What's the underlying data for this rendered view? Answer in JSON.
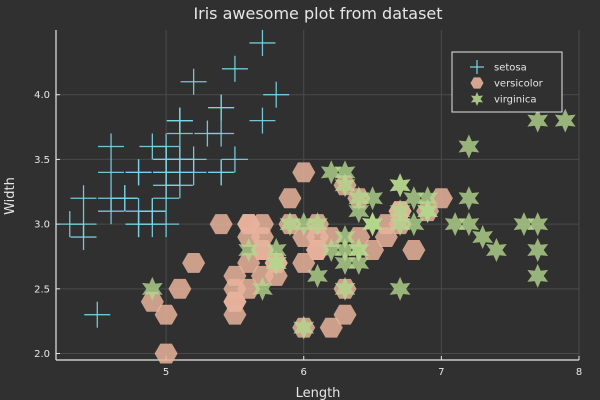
{
  "chart_data": {
    "type": "scatter",
    "title": "Iris awesome plot from dataset",
    "xlabel": "Length",
    "ylabel": "Width",
    "xlim": [
      4.2,
      8.0
    ],
    "ylim": [
      1.95,
      4.5
    ],
    "xticks": [
      "5",
      "6",
      "7",
      "8"
    ],
    "yticks": [
      "2.0",
      "2.5",
      "3.0",
      "3.5",
      "4.0"
    ],
    "grid": true,
    "legend_position": "top-right",
    "background": "#303030",
    "series": [
      {
        "name": "setosa",
        "marker": "cross",
        "color": "#7ad7e8",
        "points": [
          [
            5.1,
            3.5
          ],
          [
            4.9,
            3.0
          ],
          [
            4.7,
            3.2
          ],
          [
            4.6,
            3.1
          ],
          [
            5.0,
            3.6
          ],
          [
            5.4,
            3.9
          ],
          [
            4.6,
            3.4
          ],
          [
            5.0,
            3.4
          ],
          [
            4.4,
            2.9
          ],
          [
            4.9,
            3.1
          ],
          [
            5.4,
            3.7
          ],
          [
            4.8,
            3.4
          ],
          [
            4.8,
            3.0
          ],
          [
            4.3,
            3.0
          ],
          [
            5.8,
            4.0
          ],
          [
            5.7,
            4.4
          ],
          [
            5.4,
            3.9
          ],
          [
            5.1,
            3.5
          ],
          [
            5.7,
            3.8
          ],
          [
            5.1,
            3.8
          ],
          [
            5.4,
            3.4
          ],
          [
            5.1,
            3.7
          ],
          [
            4.6,
            3.6
          ],
          [
            5.1,
            3.3
          ],
          [
            4.8,
            3.4
          ],
          [
            5.0,
            3.0
          ],
          [
            5.0,
            3.4
          ],
          [
            5.2,
            3.5
          ],
          [
            5.2,
            3.4
          ],
          [
            4.7,
            3.2
          ],
          [
            4.8,
            3.1
          ],
          [
            5.4,
            3.4
          ],
          [
            5.2,
            4.1
          ],
          [
            5.5,
            4.2
          ],
          [
            4.9,
            3.1
          ],
          [
            5.0,
            3.2
          ],
          [
            5.5,
            3.5
          ],
          [
            4.9,
            3.6
          ],
          [
            4.4,
            3.0
          ],
          [
            5.1,
            3.4
          ],
          [
            5.0,
            3.5
          ],
          [
            4.5,
            2.3
          ],
          [
            4.4,
            3.2
          ],
          [
            5.0,
            3.5
          ],
          [
            5.1,
            3.8
          ],
          [
            4.8,
            3.0
          ],
          [
            5.1,
            3.8
          ],
          [
            4.6,
            3.2
          ],
          [
            5.3,
            3.7
          ],
          [
            5.0,
            3.3
          ]
        ]
      },
      {
        "name": "versicolor",
        "marker": "hexagon",
        "color": "#e8b39b",
        "points": [
          [
            7.0,
            3.2
          ],
          [
            6.4,
            3.2
          ],
          [
            6.9,
            3.1
          ],
          [
            5.5,
            2.3
          ],
          [
            6.5,
            2.8
          ],
          [
            5.7,
            2.8
          ],
          [
            6.3,
            3.3
          ],
          [
            4.9,
            2.4
          ],
          [
            6.6,
            2.9
          ],
          [
            5.2,
            2.7
          ],
          [
            5.0,
            2.0
          ],
          [
            5.9,
            3.0
          ],
          [
            6.0,
            2.2
          ],
          [
            6.1,
            2.9
          ],
          [
            5.6,
            2.9
          ],
          [
            6.7,
            3.1
          ],
          [
            5.6,
            3.0
          ],
          [
            5.8,
            2.7
          ],
          [
            6.2,
            2.2
          ],
          [
            5.6,
            2.5
          ],
          [
            5.9,
            3.2
          ],
          [
            6.1,
            2.8
          ],
          [
            6.3,
            2.5
          ],
          [
            6.1,
            2.8
          ],
          [
            6.4,
            2.9
          ],
          [
            6.6,
            3.0
          ],
          [
            6.8,
            2.8
          ],
          [
            6.7,
            3.0
          ],
          [
            6.0,
            2.9
          ],
          [
            5.7,
            2.6
          ],
          [
            5.5,
            2.4
          ],
          [
            5.5,
            2.4
          ],
          [
            5.8,
            2.7
          ],
          [
            6.0,
            2.7
          ],
          [
            5.4,
            3.0
          ],
          [
            6.0,
            3.4
          ],
          [
            6.7,
            3.1
          ],
          [
            6.3,
            2.3
          ],
          [
            5.6,
            3.0
          ],
          [
            5.5,
            2.5
          ],
          [
            5.5,
            2.6
          ],
          [
            6.1,
            3.0
          ],
          [
            5.8,
            2.6
          ],
          [
            5.0,
            2.3
          ],
          [
            5.6,
            2.7
          ],
          [
            5.7,
            3.0
          ],
          [
            5.7,
            2.9
          ],
          [
            6.2,
            2.9
          ],
          [
            5.1,
            2.5
          ],
          [
            5.7,
            2.8
          ]
        ]
      },
      {
        "name": "virginica",
        "marker": "star",
        "color": "#b4d68d",
        "points": [
          [
            6.3,
            3.3
          ],
          [
            5.8,
            2.7
          ],
          [
            7.1,
            3.0
          ],
          [
            6.3,
            2.9
          ],
          [
            6.5,
            3.0
          ],
          [
            7.6,
            3.0
          ],
          [
            4.9,
            2.5
          ],
          [
            7.3,
            2.9
          ],
          [
            6.7,
            2.5
          ],
          [
            7.2,
            3.6
          ],
          [
            6.5,
            3.2
          ],
          [
            6.4,
            2.7
          ],
          [
            6.8,
            3.0
          ],
          [
            5.7,
            2.5
          ],
          [
            5.8,
            2.8
          ],
          [
            6.4,
            3.2
          ],
          [
            6.5,
            3.0
          ],
          [
            7.7,
            3.8
          ],
          [
            7.7,
            2.6
          ],
          [
            6.0,
            2.2
          ],
          [
            6.9,
            3.2
          ],
          [
            5.6,
            2.8
          ],
          [
            7.7,
            2.8
          ],
          [
            6.3,
            2.7
          ],
          [
            6.7,
            3.3
          ],
          [
            7.2,
            3.2
          ],
          [
            6.2,
            2.8
          ],
          [
            6.1,
            3.0
          ],
          [
            6.4,
            2.8
          ],
          [
            7.2,
            3.0
          ],
          [
            7.4,
            2.8
          ],
          [
            7.9,
            3.8
          ],
          [
            6.4,
            2.8
          ],
          [
            6.3,
            2.8
          ],
          [
            6.1,
            2.6
          ],
          [
            7.7,
            3.0
          ],
          [
            6.3,
            3.4
          ],
          [
            6.4,
            3.1
          ],
          [
            6.0,
            3.0
          ],
          [
            6.9,
            3.1
          ],
          [
            6.7,
            3.1
          ],
          [
            6.9,
            3.1
          ],
          [
            5.8,
            2.7
          ],
          [
            6.8,
            3.2
          ],
          [
            6.7,
            3.3
          ],
          [
            6.7,
            3.0
          ],
          [
            6.3,
            2.5
          ],
          [
            6.5,
            3.0
          ],
          [
            6.2,
            3.4
          ],
          [
            5.9,
            3.0
          ]
        ]
      }
    ]
  }
}
